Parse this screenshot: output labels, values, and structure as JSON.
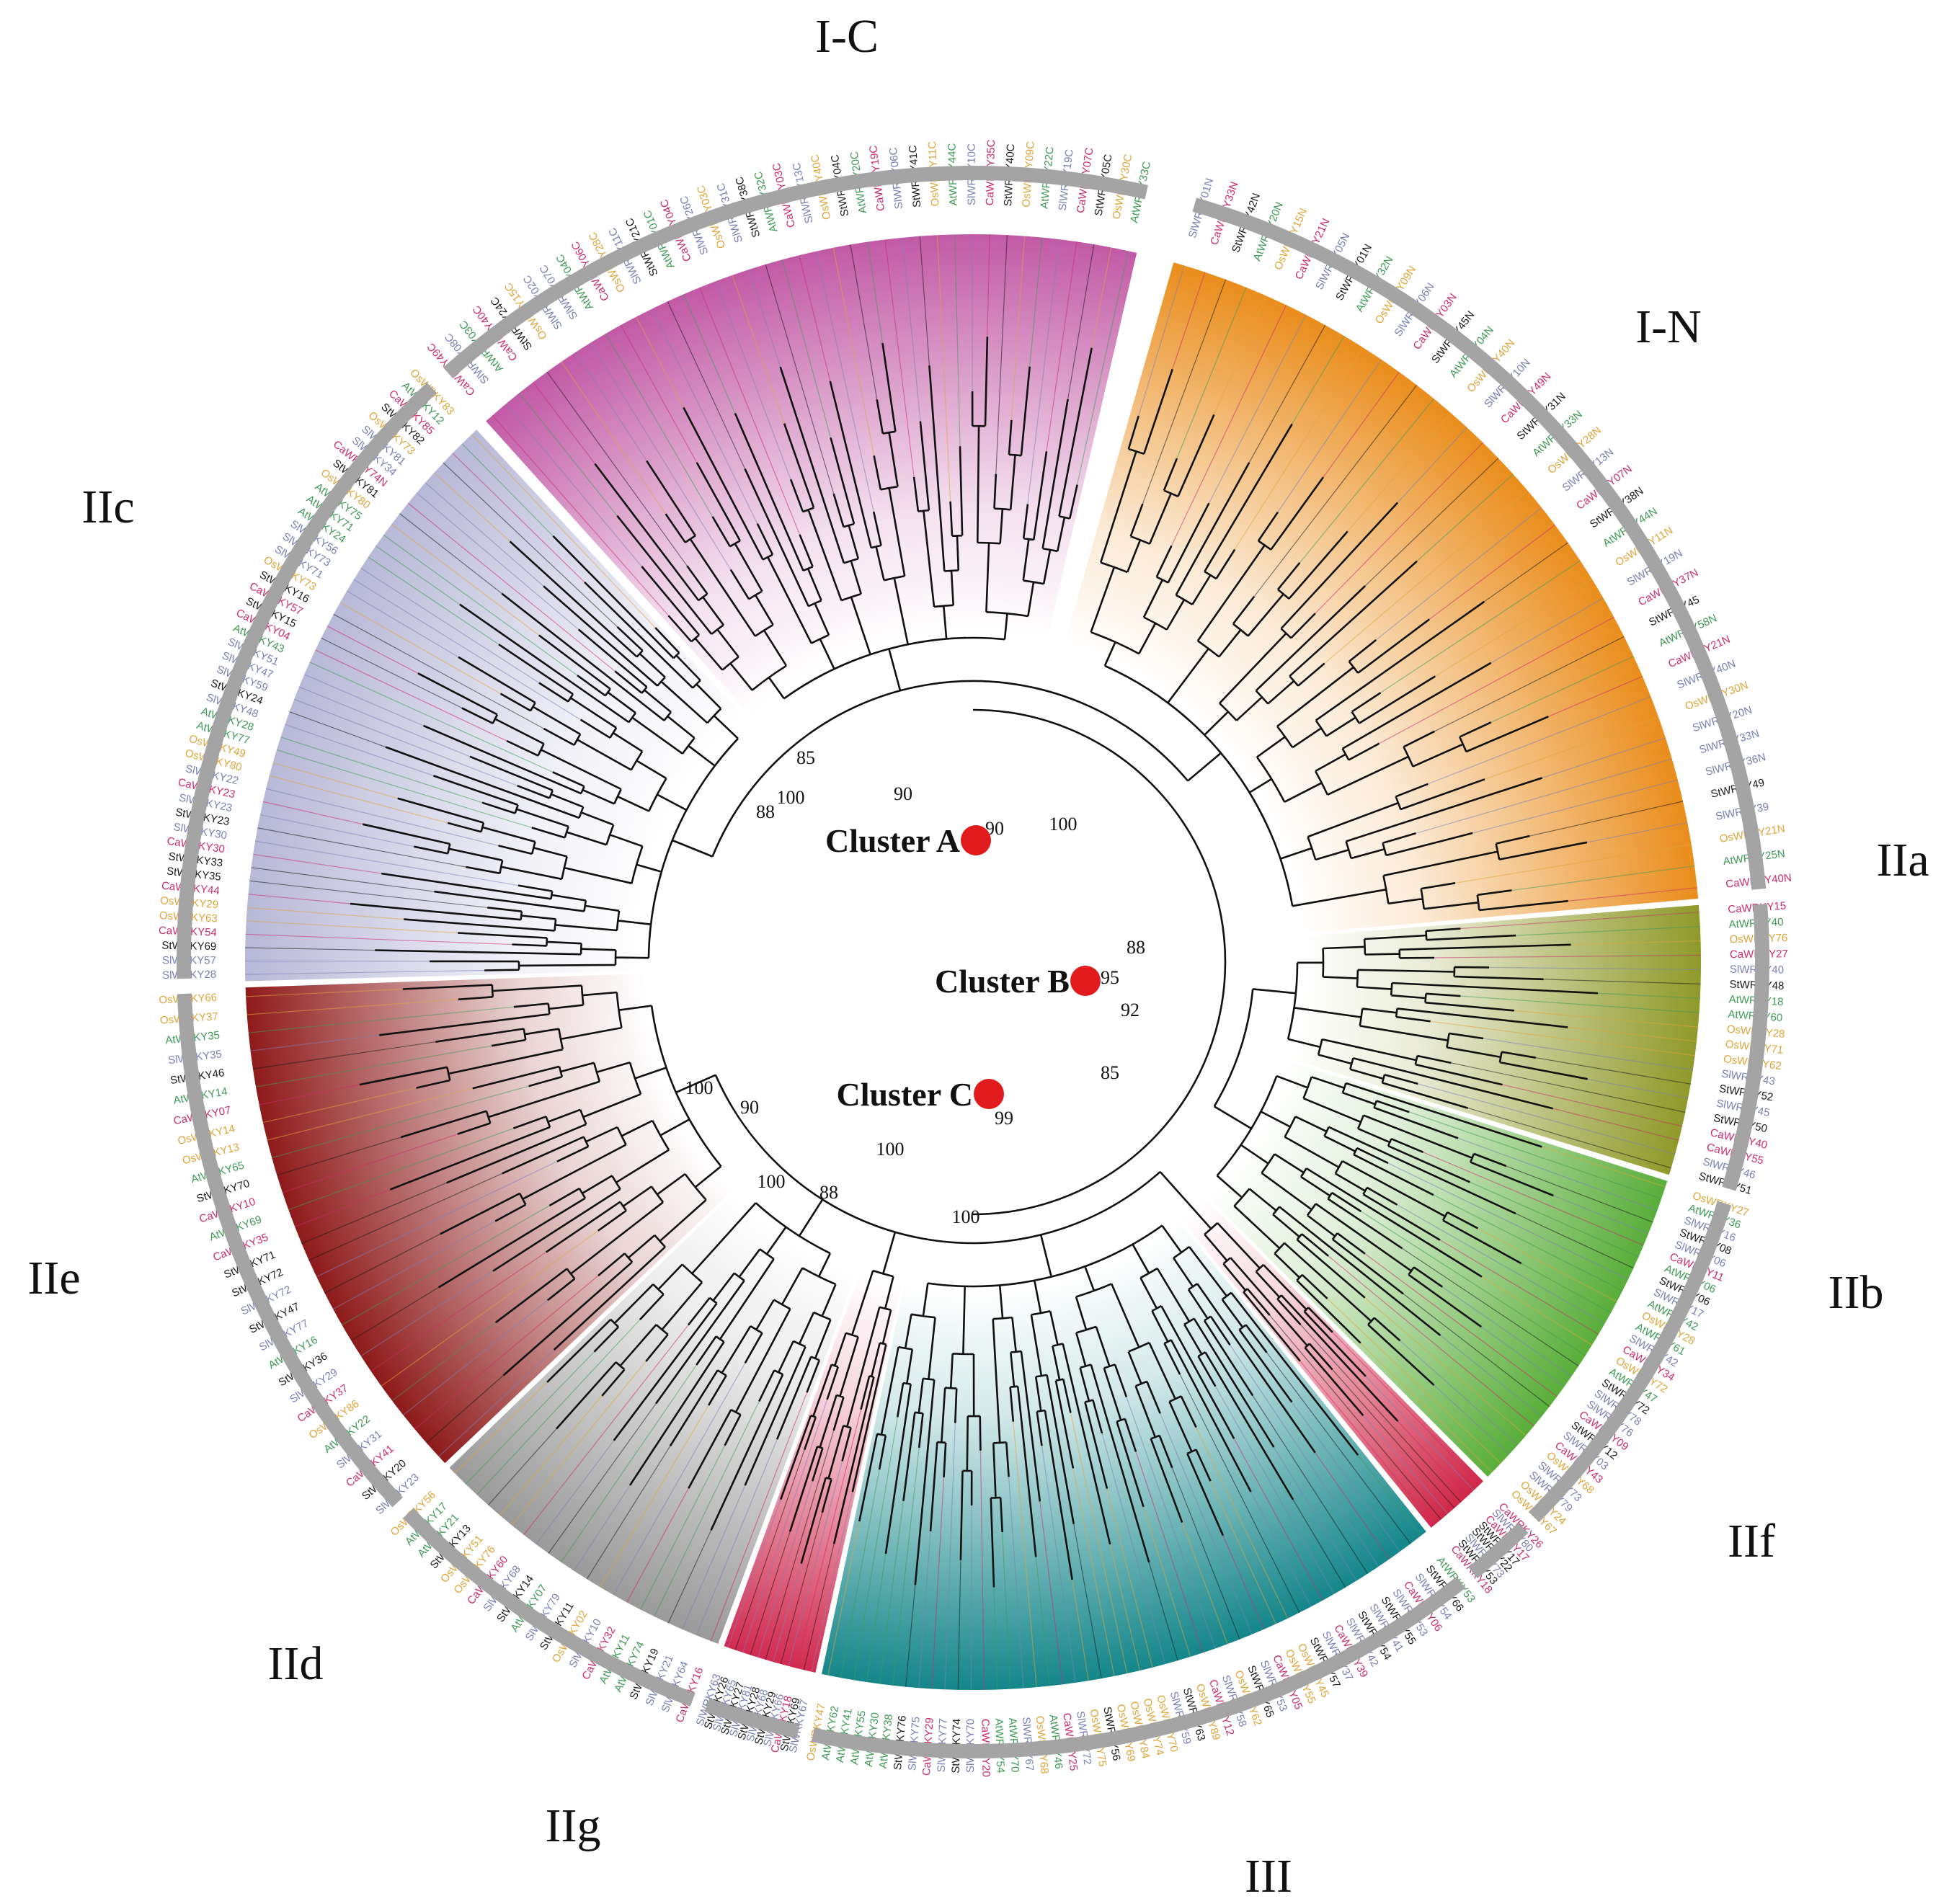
{
  "palette": {
    "species_colors": {
      "Sl": "#7b7fb6",
      "Ca": "#cc2c6e",
      "At": "#3f9a55",
      "St": "#1a1a1a",
      "Os": "#e0a53a"
    },
    "group_colors": {
      "I-C": "#c25aa6",
      "I-N": "#ea8d1c",
      "IIa": "#8f9a2a",
      "IIb": "#5aae3a",
      "IIf": "#d02848",
      "III": "#14868a",
      "IIg": "#d22a50",
      "IId": "#9a9a9a",
      "IIe": "#8e1a1a",
      "IIc": "#b8b8d8"
    },
    "node_marker_color": "#e11b1b",
    "outer_ring_color": "#a4a4a4"
  },
  "groups": [
    {
      "id": "I-C",
      "label": "I-C",
      "color": "#c25aa6",
      "leaves": [
        "CaWRKY49C",
        "SlWRKY08C",
        "AtWRKY03C",
        "CaWRKY40C",
        "StWRKY24C",
        "OsWRKY15C",
        "SlWRKY02C",
        "SlWRKY07C",
        "AtWRKY04C",
        "CaWRKY06C",
        "OsWRKY28C",
        "SlWRKY11C",
        "StWRKY21C",
        "AtWRKY01C",
        "CaWRKY04C",
        "SlWRKY26C",
        "OsWRKY03C",
        "SlWRKY31C",
        "StWRKY38C",
        "AtWRKY32C",
        "CaWRKY03C",
        "SlWRKY13C",
        "OsWRKY40C",
        "StWRKY04C",
        "AtWRKY20C",
        "CaWRKY19C",
        "SlWRKY06C",
        "StWRKY41C",
        "OsWRKY11C",
        "AtWRKY44C",
        "SlWRKY10C",
        "CaWRKY35C",
        "StWRKY40C",
        "OsWRKY09C",
        "AtWRKY22C",
        "SlWRKY19C",
        "CaWRKY07C",
        "StWRKY05C",
        "OsWRKY30C",
        "AtWRKY33C"
      ]
    },
    {
      "id": "I-N",
      "label": "I-N",
      "color": "#ea8d1c",
      "leaves": [
        "SlWRKY01N",
        "CaWRKY33N",
        "StWRKY42N",
        "AtWRKY20N",
        "OsWRKY15N",
        "CaWRKY21N",
        "SlWRKY05N",
        "StWRKY01N",
        "AtWRKY32N",
        "OsWRKY09N",
        "SlWRKY06N",
        "CaWRKY03N",
        "StWRKY45N",
        "AtWRKY04N",
        "OsWRKY40N",
        "SlWRKY10N",
        "CaWRKY49N",
        "StWRKY31N",
        "AtWRKY33N",
        "OsWRKY28N",
        "SlWRKY13N",
        "CaWRKY07N",
        "StWRKY38N",
        "AtWRKY44N",
        "OsWRKY11N",
        "SlWRKY19N",
        "CaWRKY37N",
        "StWRKY45",
        "AtWRKY58N",
        "CaWRKY21N",
        "SlWRKY40N",
        "OsWRKY30N",
        "SlWRKY20N",
        "SlWRKY33N",
        "SlWRKY36N",
        "StWRKY49",
        "SlWRKY39",
        "OsWRKY21N",
        "AtWRKY25N",
        "CaWRKY40N"
      ]
    },
    {
      "id": "IIa",
      "label": "IIa",
      "color": "#8f9a2a",
      "leaves": [
        "CaWRKY15",
        "AtWRKY40",
        "OsWRKY76",
        "CaWRKY27",
        "SlWRKY40",
        "StWRKY48",
        "AtWRKY18",
        "AtWRKY60",
        "OsWRKY28",
        "OsWRKY71",
        "OsWRKY62",
        "SlWRKY43",
        "StWRKY52",
        "SlWRKY45",
        "StWRKY50",
        "CaWRKY40",
        "CaWRKY55",
        "SlWRKY46",
        "StWRKY51"
      ]
    },
    {
      "id": "IIb",
      "label": "IIb",
      "color": "#5aae3a",
      "leaves": [
        "OsWRKY27",
        "AtWRKY36",
        "SlWRKY16",
        "StWRKY08",
        "SlWRKY06",
        "CaWRKY11",
        "AtWRKY06",
        "StWRKY06",
        "SlWRKY17",
        "AtWRKY42",
        "OsWRKY28",
        "AtWRKY61",
        "SlWRKY42",
        "CaWRKY34",
        "OsWRKY72",
        "AtWRKY47",
        "StWRKY72",
        "SlWRKY78",
        "SlWRKY76",
        "CaWRKY09",
        "StWRKY12",
        "SlWRKY03",
        "CaWRKY43",
        "OsWRKY68",
        "SlWRKY73",
        "SlWRKY79",
        "OsWRKY24",
        "OsWRKY67"
      ]
    },
    {
      "id": "IIf",
      "label": "IIf",
      "color": "#d02848",
      "leaves": [
        "CaWRKY26",
        "SlWRKY80",
        "CaWRKY17",
        "StWRKY17",
        "StWRKY22",
        "SlWRKY73",
        "StWRKY53",
        "CaWRKY18"
      ]
    },
    {
      "id": "III",
      "label": "III",
      "color": "#14868a",
      "leaves": [
        "AtWRKY53",
        "StWRKY66",
        "SlWRKY54",
        "CaWRKY06",
        "SlWRKY53",
        "StWRKY55",
        "SlWRKY41",
        "StWRKY54",
        "SlWRKY42",
        "CaWRKY39",
        "SlWRKY37",
        "StWRKY57",
        "OsWRKY45",
        "OsWRKY55",
        "CaWRKY05",
        "SlWRKY53",
        "StWRKY65",
        "OsWRKY62",
        "SlWRKY58",
        "CaWRKY12",
        "OsWRKY89",
        "StWRKY63",
        "SlWRKY59",
        "OsWRKY70",
        "OsWRKY74",
        "OsWRKY84",
        "OsWRKY69",
        "StWRKY56",
        "OsWRKY75",
        "SlWRKY72",
        "CaWRKY25",
        "AtWRKY46",
        "OsWRKY68",
        "SlWRKY67",
        "AtWRKY70",
        "AtWRKY54",
        "CaWRKY20",
        "SlWRKY70",
        "StWRKY74",
        "SlWRKY77",
        "CaWRKY29",
        "SlWRKY75",
        "StWRKY76",
        "AtWRKY38",
        "AtWRKY30",
        "AtWRKY55",
        "AtWRKY41",
        "AtWRKY62",
        "OsWRKY47"
      ]
    },
    {
      "id": "IIg",
      "label": "IIg",
      "color": "#d22a50",
      "leaves": [
        "SlWRKY67",
        "StWRKY69",
        "CaWRKY18",
        "SlWRKY66",
        "StWRKY29",
        "SlWRKY68",
        "StWRKY28",
        "SlWRKY81",
        "StWRKY27",
        "SlWRKY65",
        "StWRKY26",
        "SlWRKY63"
      ]
    },
    {
      "id": "IId",
      "label": "IId",
      "color": "#9a9a9a",
      "leaves": [
        "CaWRKY16",
        "SlWRKY64",
        "SlWRKY21",
        "StWRKY19",
        "AtWRKY74",
        "AtWRKY11",
        "CaWRKY32",
        "SlWRKY10",
        "OsWRKY02",
        "StWRKY11",
        "SlWRKY79",
        "AtWRKY07",
        "StWRKY14",
        "SlWRKY68",
        "CaWRKY60",
        "OsWRKY76",
        "OsWRKY51",
        "StWRKY13",
        "AtWRKY21",
        "AtWRKY17",
        "OsWRKY56"
      ]
    },
    {
      "id": "IIe",
      "label": "IIe",
      "color": "#8e1a1a",
      "leaves": [
        "SlWRKY23",
        "StWRKY20",
        "CaWRKY41",
        "SlWRKY31",
        "AtWRKY22",
        "OsWRKY86",
        "CaWRKY37",
        "SlWRKY29",
        "StWRKY36",
        "AtWRKY16",
        "SlWRKY77",
        "StWRKY47",
        "SlWRKY72",
        "StWRKY72",
        "StWRKY71",
        "CaWRKY35",
        "AtWRKY69",
        "CaWRKY10",
        "StWRKY70",
        "AtWRKY65",
        "OsWRKY13",
        "OsWRKY14",
        "CaWRKY07",
        "AtWRKY14",
        "StWRKY46",
        "SlWRKY35",
        "AtWRKY35",
        "OsWRKY37",
        "OsWRKY66"
      ]
    },
    {
      "id": "IIc",
      "label": "IIc",
      "color": "#b8b8d8",
      "leaves": [
        "SlWRKY28",
        "SlWRKY57",
        "StWRKY69",
        "CaWRKY54",
        "OsWRKY63",
        "OsWRKY29",
        "CaWRKY44",
        "StWRKY35",
        "StWRKY33",
        "CaWRKY30",
        "SlWRKY30",
        "StWRKY23",
        "SlWRKY23",
        "CaWRKY23",
        "SlWRKY22",
        "OsWRKY80",
        "OsWRKY49",
        "AtWRKY77",
        "AtWRKY28",
        "SlWRKY48",
        "StWRKY24",
        "SlWRKY59",
        "SlWRKY47",
        "SlWRKY51",
        "AtWRKY43",
        "CaWRKY04",
        "StWRKY15",
        "CaWRKY57",
        "StWRKY16",
        "OsWRKY73",
        "SlWRKY71",
        "SlWRKY73",
        "SlWRKY56",
        "AtWRKY24",
        "AtWRKY71",
        "AtWRKY75",
        "OsWRKY80",
        "StWRKY81",
        "CaWRKY74N",
        "SlWRKY34",
        "SlWRKY81",
        "OsWRKY73",
        "StWRKY82",
        "CaWRKY85",
        "AtWRKY12",
        "OsWRKY83"
      ]
    }
  ],
  "group_label_text": [
    "I-C",
    "I-N",
    "IIa",
    "IIb",
    "IIf",
    "III",
    "IIg",
    "IId",
    "IIe",
    "IIc"
  ],
  "clusters": [
    {
      "id": "A",
      "label": "Cluster A",
      "bootstrap": "90"
    },
    {
      "id": "B",
      "label": "Cluster B",
      "bootstrap": "95"
    },
    {
      "id": "C",
      "label": "Cluster C",
      "bootstrap": "99"
    }
  ],
  "bootstrap_values": [
    "85",
    "100",
    "88",
    "90",
    "100",
    "88",
    "92",
    "85",
    "100",
    "90",
    "100",
    "100",
    "88",
    "100"
  ]
}
